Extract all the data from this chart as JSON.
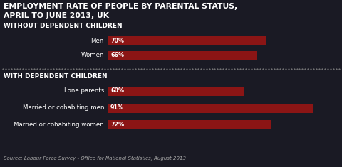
{
  "title_line1": "EMPLOYMENT RATE OF PEOPLE BY PARENTAL STATUS,",
  "title_line2": "APRIL TO JUNE 2013, UK",
  "section1_label": "WITHOUT DEPENDENT CHILDREN",
  "section2_label": "WITH DEPENDENT CHILDREN",
  "categories": [
    "Men",
    "Women",
    "Lone parents",
    "Married or cohabiting men",
    "Married or cohabiting women"
  ],
  "values": [
    70,
    66,
    60,
    91,
    72
  ],
  "bar_color": "#8B1515",
  "bg_color": "#1a1a24",
  "text_color": "#ffffff",
  "source": "Source: Labour Force Survey - Office for National Statistics, August 2013",
  "max_val": 100,
  "label_fontsize": 6.2,
  "title_fontsize": 7.8,
  "section_fontsize": 6.4,
  "source_fontsize": 5.0,
  "value_fontsize": 5.8
}
